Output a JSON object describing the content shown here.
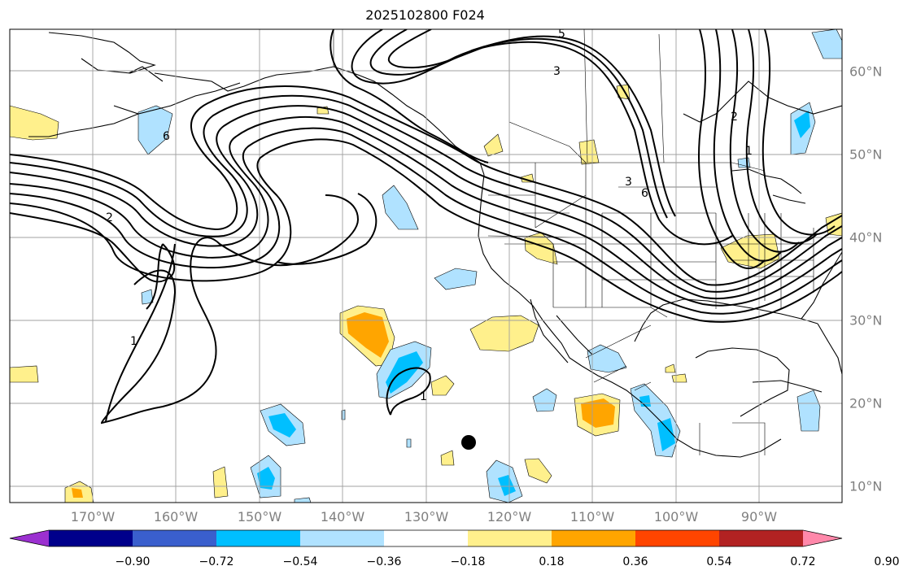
{
  "title": "2025102800 F024",
  "lon_labels": [
    "170°W",
    "160°W",
    "150°W",
    "140°W",
    "130°W",
    "120°W",
    "110°W",
    "100°W",
    "90°W"
  ],
  "lat_labels": [
    "60°N",
    "50°N",
    "40°N",
    "30°N",
    "20°N",
    "10°N"
  ],
  "contour_labels": [
    "5",
    "3",
    "2",
    "6",
    "3",
    "6",
    "1",
    "2",
    "1",
    "1"
  ],
  "colorbar": {
    "colors": [
      "#9b30d0",
      "#00008b",
      "#3a5fcd",
      "#00bfff",
      "#b0e2ff",
      "#ffffff",
      "#fff08c",
      "#ffa500",
      "#ff4500",
      "#b22222",
      "#ff88aa"
    ],
    "tick_labels": [
      "−0.90",
      "−0.72",
      "−0.54",
      "−0.36",
      "−0.18",
      "0.18",
      "0.36",
      "0.54",
      "0.72",
      "0.90"
    ]
  },
  "marker_color": "#000000"
}
